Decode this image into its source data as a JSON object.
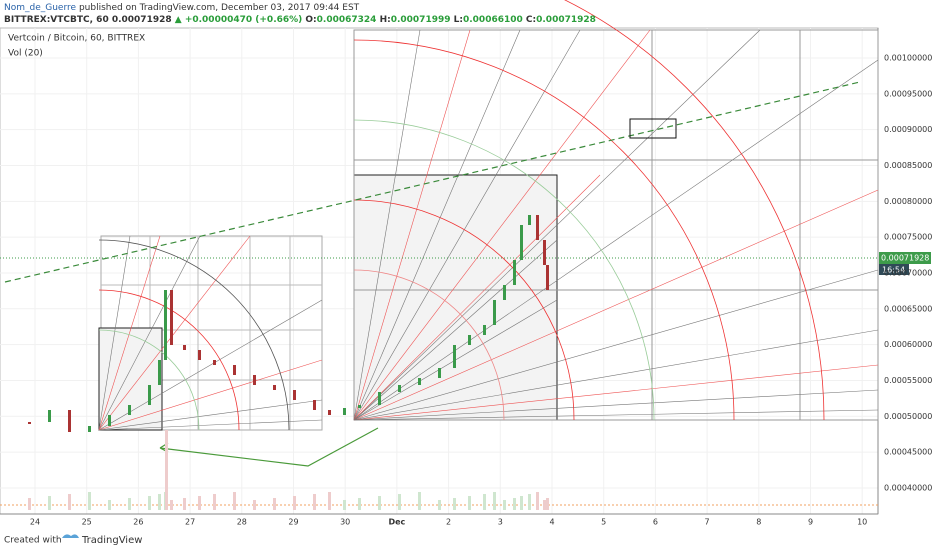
{
  "header": {
    "author": "Nom_de_Guerre",
    "published": "published on TradingView.com, December 03, 2017 09:44 EST",
    "symbol": "BITTREX:VTCBTC, 60",
    "last": "0.00071928",
    "change": "▲ +0.00000470 (+0.66%)",
    "open_label": "O:",
    "open": "0.00067324",
    "high_label": "H:",
    "high": "0.00071999",
    "low_label": "L:",
    "low": "0.00066100",
    "close_label": "C:",
    "close": "0.00071928"
  },
  "legend": {
    "title": "Vertcoin / Bitcoin, 60, BITTREX",
    "volume": "Vol (20)"
  },
  "price_axis": {
    "ticks": [
      "0.00100000",
      "0.00095000",
      "0.00090000",
      "0.00085000",
      "0.00080000",
      "0.00075000",
      "0.00070000",
      "0.00065000",
      "0.00060000",
      "0.00055000",
      "0.00050000",
      "0.00045000",
      "0.00040000"
    ],
    "last_price": "0.00071928",
    "countdown": "16:54"
  },
  "time_axis": {
    "ticks": [
      "24",
      "25",
      "26",
      "27",
      "28",
      "29",
      "30",
      "Dec",
      "2",
      "3",
      "4",
      "5",
      "6",
      "7",
      "8",
      "9",
      "10"
    ]
  },
  "footer": {
    "created": "Created with",
    "brand": "TradingView"
  }
}
